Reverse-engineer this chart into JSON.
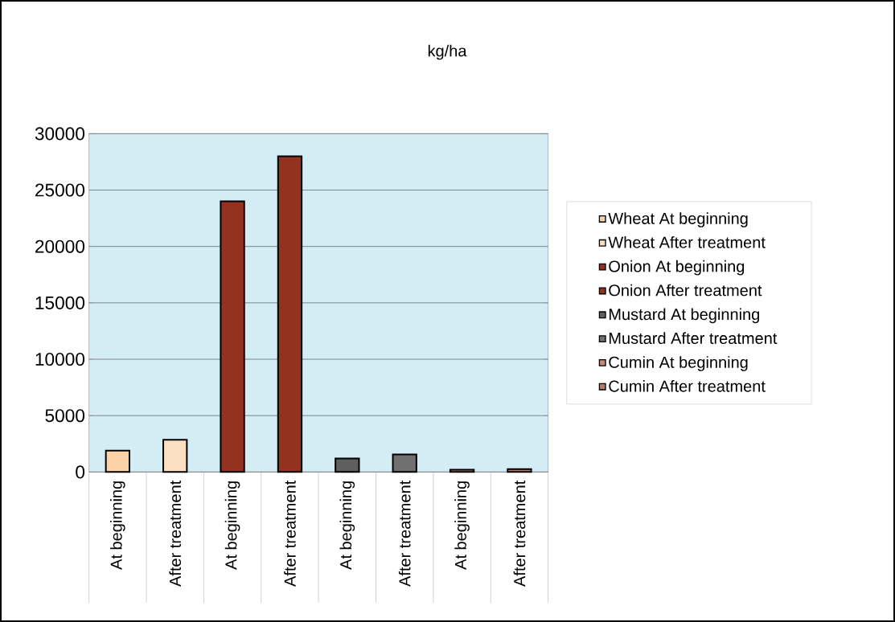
{
  "chart_data": {
    "type": "bar",
    "title": "kg/ha",
    "categories": [
      "At beginning",
      "After treatment",
      "At beginning",
      "After treatment",
      "At beginning",
      "After treatment",
      "At beginning",
      "After treatment"
    ],
    "series": [
      {
        "name": "Wheat At beginning",
        "color": "#fcd2a6",
        "values": [
          1900,
          null,
          null,
          null,
          null,
          null,
          null,
          null
        ]
      },
      {
        "name": "Wheat After treatment",
        "color": "#fde0c2",
        "values": [
          null,
          2850,
          null,
          null,
          null,
          null,
          null,
          null
        ]
      },
      {
        "name": "Onion At beginning",
        "color": "#943220",
        "values": [
          null,
          null,
          24000,
          null,
          null,
          null,
          null,
          null
        ]
      },
      {
        "name": "Onion After treatment",
        "color": "#943220",
        "values": [
          null,
          null,
          null,
          28000,
          null,
          null,
          null,
          null
        ]
      },
      {
        "name": "Mustard At beginning",
        "color": "#5f5f5f",
        "values": [
          null,
          null,
          null,
          null,
          1200,
          null,
          null,
          null
        ]
      },
      {
        "name": "Mustard After treatment",
        "color": "#707070",
        "values": [
          null,
          null,
          null,
          null,
          null,
          1550,
          null,
          null
        ]
      },
      {
        "name": "Cumin At beginning",
        "color": "#c88a7a",
        "values": [
          null,
          null,
          null,
          null,
          null,
          null,
          200,
          null
        ]
      },
      {
        "name": "Cumin After treatment",
        "color": "#b87a6a",
        "values": [
          null,
          null,
          null,
          null,
          null,
          null,
          null,
          250
        ]
      }
    ],
    "ylim": [
      0,
      30000
    ],
    "yticks": [
      0,
      5000,
      10000,
      15000,
      20000,
      25000,
      30000
    ],
    "grid": "y",
    "legend": "right"
  }
}
